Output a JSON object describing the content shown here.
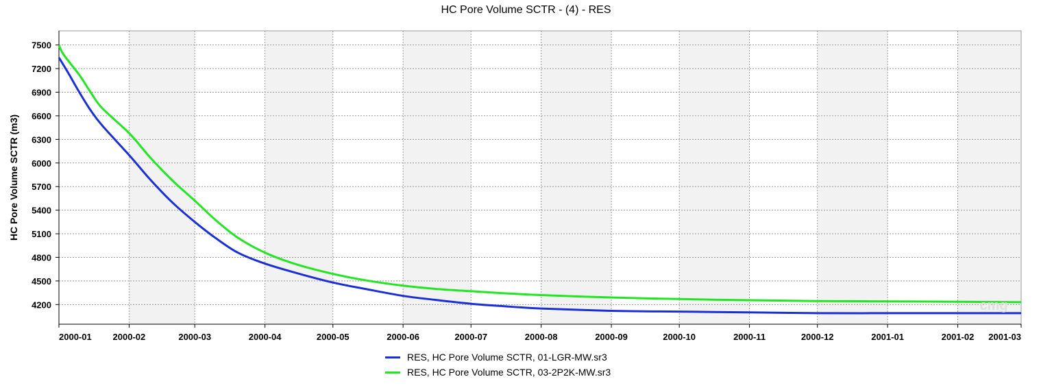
{
  "chart_data": {
    "type": "line",
    "title": "HC Pore Volume SCTR - (4) - RES",
    "xlabel": "",
    "ylabel": "HC Pore Volume SCTR (m3)",
    "x_ticks": [
      "2000-01",
      "2000-02",
      "2000-03",
      "2000-04",
      "2000-05",
      "2000-06",
      "2000-07",
      "2000-08",
      "2000-09",
      "2000-10",
      "2000-11",
      "2000-12",
      "2001-01",
      "2001-02",
      "2001-03"
    ],
    "y_ticks": [
      4200,
      4500,
      4800,
      5100,
      5400,
      5700,
      6000,
      6300,
      6600,
      6900,
      7200,
      7500
    ],
    "ylim": [
      3950,
      7680
    ],
    "xlim": [
      "2000-01",
      "2001-03"
    ],
    "grid": true,
    "legend_position": "bottom",
    "series": [
      {
        "name": "RES, HC Pore Volume SCTR, 01-LGR-MW.sr3",
        "color": "#1a2fd6",
        "x": [
          "2000-01-01",
          "2000-01-05",
          "2000-01-10",
          "2000-01-15",
          "2000-01-20",
          "2000-02-01",
          "2000-02-10",
          "2000-02-20",
          "2000-03-01",
          "2000-03-10",
          "2000-03-20",
          "2000-04-01",
          "2000-04-15",
          "2000-05-01",
          "2000-05-15",
          "2000-06-01",
          "2000-06-15",
          "2000-07-01",
          "2000-07-15",
          "2000-08-01",
          "2000-09-01",
          "2000-10-01",
          "2000-11-01",
          "2000-12-01",
          "2001-01-01",
          "2001-02-01",
          "2001-03-01"
        ],
        "values": [
          7340,
          7150,
          6900,
          6670,
          6480,
          6100,
          5800,
          5500,
          5250,
          5050,
          4860,
          4720,
          4600,
          4480,
          4400,
          4310,
          4260,
          4210,
          4180,
          4150,
          4120,
          4110,
          4100,
          4090,
          4090,
          4090,
          4090
        ]
      },
      {
        "name": "RES, HC Pore Volume SCTR, 03-2P2K-MW.sr3",
        "color": "#22e622",
        "x": [
          "2000-01-01",
          "2000-01-03",
          "2000-01-10",
          "2000-01-15",
          "2000-01-20",
          "2000-02-01",
          "2000-02-10",
          "2000-02-20",
          "2000-03-01",
          "2000-03-10",
          "2000-03-20",
          "2000-04-01",
          "2000-04-15",
          "2000-05-01",
          "2000-05-15",
          "2000-06-01",
          "2000-06-15",
          "2000-07-01",
          "2000-07-15",
          "2000-08-01",
          "2000-09-01",
          "2000-10-01",
          "2000-11-01",
          "2000-12-01",
          "2001-01-01",
          "2001-02-01",
          "2001-03-01"
        ],
        "values": [
          7500,
          7380,
          7120,
          6900,
          6700,
          6380,
          6080,
          5780,
          5520,
          5280,
          5050,
          4860,
          4710,
          4590,
          4510,
          4440,
          4400,
          4370,
          4345,
          4320,
          4290,
          4270,
          4255,
          4245,
          4240,
          4235,
          4230
        ]
      }
    ]
  },
  "watermark": "cmg"
}
